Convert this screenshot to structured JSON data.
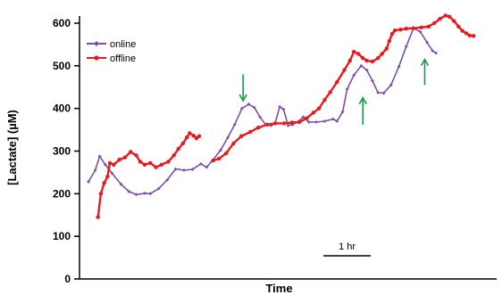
{
  "chart_data": {
    "type": "line",
    "title": "",
    "xlabel": "Time",
    "ylabel": "[Lactate] (µM)",
    "ylim": [
      0,
      600
    ],
    "yticks": [
      0,
      100,
      200,
      300,
      400,
      500,
      600
    ],
    "xlim": [
      0,
      7.1
    ],
    "x_unit": "hr",
    "grid": false,
    "legend_position": "top-left",
    "scale_bar": {
      "label": "1 hr",
      "duration_hr": 1
    },
    "series": [
      {
        "name": "online",
        "color": "#7b4fb0",
        "marker": "diamond",
        "points": [
          [
            0.0,
            228
          ],
          [
            0.12,
            255
          ],
          [
            0.2,
            288
          ],
          [
            0.3,
            268
          ],
          [
            0.42,
            248
          ],
          [
            0.58,
            222
          ],
          [
            0.72,
            205
          ],
          [
            0.85,
            198
          ],
          [
            1.0,
            201
          ],
          [
            1.1,
            200
          ],
          [
            1.25,
            212
          ],
          [
            1.4,
            232
          ],
          [
            1.55,
            258
          ],
          [
            1.7,
            255
          ],
          [
            1.85,
            257
          ],
          [
            2.0,
            270
          ],
          [
            2.1,
            262
          ],
          [
            2.2,
            277
          ],
          [
            2.35,
            302
          ],
          [
            2.48,
            332
          ],
          [
            2.6,
            362
          ],
          [
            2.73,
            400
          ],
          [
            2.85,
            410
          ],
          [
            2.95,
            402
          ],
          [
            3.05,
            380
          ],
          [
            3.15,
            362
          ],
          [
            3.25,
            360
          ],
          [
            3.32,
            365
          ],
          [
            3.4,
            404
          ],
          [
            3.47,
            398
          ],
          [
            3.55,
            360
          ],
          [
            3.63,
            362
          ],
          [
            3.72,
            368
          ],
          [
            3.82,
            380
          ],
          [
            3.92,
            368
          ],
          [
            4.05,
            368
          ],
          [
            4.2,
            370
          ],
          [
            4.35,
            375
          ],
          [
            4.42,
            370
          ],
          [
            4.52,
            392
          ],
          [
            4.6,
            445
          ],
          [
            4.72,
            478
          ],
          [
            4.85,
            500
          ],
          [
            4.95,
            490
          ],
          [
            5.05,
            465
          ],
          [
            5.15,
            437
          ],
          [
            5.25,
            436
          ],
          [
            5.38,
            455
          ],
          [
            5.52,
            498
          ],
          [
            5.65,
            545
          ],
          [
            5.78,
            588
          ],
          [
            5.9,
            580
          ],
          [
            6.02,
            555
          ],
          [
            6.12,
            535
          ],
          [
            6.18,
            530
          ]
        ]
      },
      {
        "name": "offline",
        "color": "#e8191f",
        "marker": "circle",
        "segments": [
          [
            [
              0.17,
              145
            ],
            [
              0.22,
              200
            ],
            [
              0.28,
              225
            ],
            [
              0.34,
              240
            ],
            [
              0.38,
              272
            ],
            [
              0.45,
              268
            ],
            [
              0.55,
              280
            ],
            [
              0.65,
              285
            ],
            [
              0.75,
              298
            ],
            [
              0.85,
              290
            ],
            [
              0.92,
              275
            ],
            [
              1.0,
              268
            ],
            [
              1.1,
              272
            ],
            [
              1.2,
              262
            ],
            [
              1.3,
              268
            ],
            [
              1.42,
              275
            ],
            [
              1.52,
              290
            ],
            [
              1.6,
              305
            ],
            [
              1.68,
              318
            ],
            [
              1.75,
              332
            ],
            [
              1.8,
              342
            ],
            [
              1.87,
              336
            ],
            [
              1.92,
              330
            ],
            [
              1.97,
              335
            ]
          ],
          [
            [
              2.22,
              278
            ],
            [
              2.32,
              282
            ],
            [
              2.45,
              295
            ],
            [
              2.58,
              318
            ],
            [
              2.72,
              335
            ],
            [
              2.88,
              345
            ],
            [
              3.02,
              355
            ],
            [
              3.18,
              362
            ],
            [
              3.32,
              365
            ],
            [
              3.48,
              365
            ],
            [
              3.62,
              367
            ],
            [
              3.75,
              368
            ],
            [
              3.88,
              377
            ],
            [
              4.0,
              390
            ],
            [
              4.1,
              400
            ],
            [
              4.2,
              420
            ],
            [
              4.3,
              438
            ],
            [
              4.42,
              462
            ],
            [
              4.55,
              490
            ],
            [
              4.65,
              512
            ],
            [
              4.72,
              533
            ],
            [
              4.8,
              528
            ],
            [
              4.88,
              518
            ],
            [
              4.95,
              512
            ],
            [
              5.05,
              510
            ],
            [
              5.15,
              518
            ],
            [
              5.22,
              528
            ],
            [
              5.3,
              540
            ],
            [
              5.35,
              558
            ],
            [
              5.4,
              575
            ],
            [
              5.45,
              583
            ],
            [
              5.55,
              585
            ],
            [
              5.65,
              587
            ],
            [
              5.78,
              588
            ],
            [
              5.92,
              590
            ],
            [
              6.05,
              592
            ],
            [
              6.15,
              600
            ],
            [
              6.25,
              610
            ],
            [
              6.35,
              618
            ],
            [
              6.42,
              615
            ],
            [
              6.5,
              605
            ],
            [
              6.58,
              592
            ],
            [
              6.65,
              582
            ],
            [
              6.72,
              576
            ],
            [
              6.78,
              571
            ],
            [
              6.85,
              570
            ]
          ]
        ]
      }
    ],
    "annotations": [
      {
        "type": "arrow-down",
        "color": "#1a9a4a",
        "x": 2.75,
        "y_from": 480,
        "y_to": 418
      },
      {
        "type": "arrow-up",
        "color": "#1a9a4a",
        "x": 4.88,
        "y_from": 362,
        "y_to": 425
      },
      {
        "type": "arrow-up",
        "color": "#1a9a4a",
        "x": 5.98,
        "y_from": 455,
        "y_to": 515
      }
    ]
  }
}
